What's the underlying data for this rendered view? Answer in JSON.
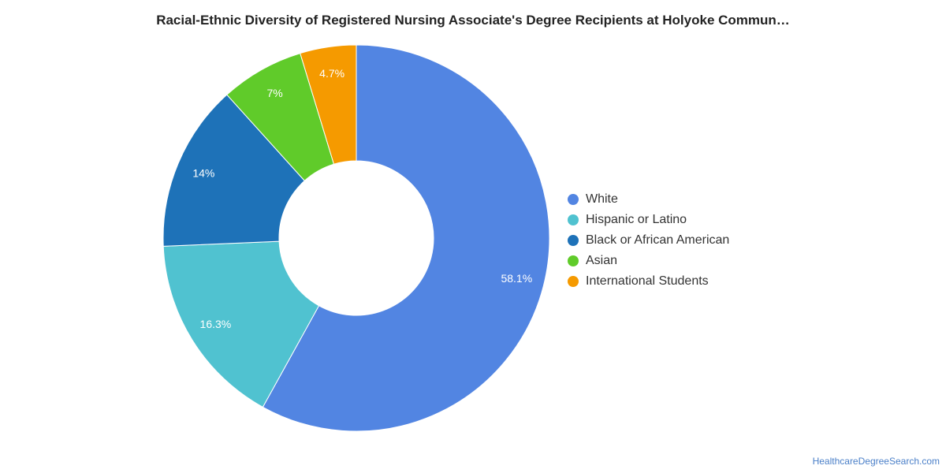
{
  "chart_data": {
    "type": "pie",
    "title": "Racial-Ethnic Diversity of Registered Nursing Associate's Degree Recipients at Holyoke Commun…",
    "categories": [
      "White",
      "Hispanic or Latino",
      "Black or African American",
      "Asian",
      "International Students"
    ],
    "values": [
      58.1,
      16.3,
      14,
      7,
      4.7
    ],
    "data_labels": [
      "58.1%",
      "16.3%",
      "14%",
      "7%",
      "4.7%"
    ],
    "colors": [
      "#5285e2",
      "#50c2d0",
      "#1e72b8",
      "#60cb2a",
      "#f59a00"
    ],
    "donut": true,
    "legend_position": "right"
  },
  "credit": "HealthcareDegreeSearch.com"
}
